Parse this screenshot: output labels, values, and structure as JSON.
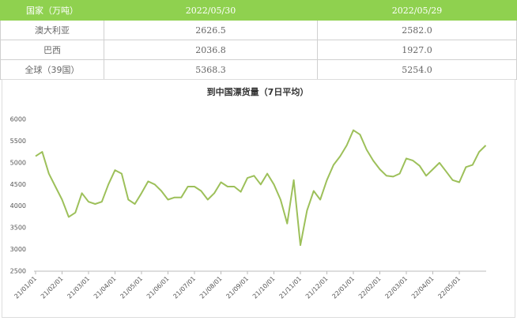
{
  "table": {
    "header": [
      "国家（万吨）",
      "2022/05/30",
      "2022/05/29"
    ],
    "rows": [
      [
        "澳大利亚",
        "2626.5",
        "2582.0"
      ],
      [
        "巴西",
        "2036.8",
        "1927.0"
      ],
      [
        "全球（39国）",
        "5368.3",
        "5254.0"
      ]
    ]
  },
  "chart_data": {
    "type": "line",
    "title": "到中国漂货量（7日平均）",
    "categories": [
      "21/01/01",
      null,
      null,
      null,
      "21/02/01",
      null,
      null,
      null,
      "21/03/01",
      null,
      null,
      null,
      "21/04/01",
      null,
      null,
      null,
      "21/05/01",
      null,
      null,
      null,
      "21/06/01",
      null,
      null,
      null,
      "21/07/01",
      null,
      null,
      null,
      "21/08/01",
      null,
      null,
      null,
      "21/09/01",
      null,
      null,
      null,
      "21/10/01",
      null,
      null,
      null,
      "21/11/01",
      null,
      null,
      null,
      "21/12/01",
      null,
      null,
      null,
      "22/01/01",
      null,
      null,
      null,
      "22/02/01",
      null,
      null,
      null,
      "22/03/01",
      null,
      null,
      null,
      "22/04/01",
      null,
      null,
      null,
      "22/05/01",
      null,
      null,
      null,
      null
    ],
    "values": [
      5150,
      5250,
      4750,
      4450,
      4150,
      3750,
      3850,
      4300,
      4100,
      4050,
      4100,
      4500,
      4830,
      4750,
      4150,
      4050,
      4300,
      4570,
      4500,
      4350,
      4150,
      4200,
      4200,
      4450,
      4450,
      4350,
      4150,
      4300,
      4550,
      4450,
      4450,
      4330,
      4650,
      4700,
      4500,
      4750,
      4500,
      4150,
      3600,
      4600,
      3100,
      3900,
      4350,
      4150,
      4600,
      4950,
      5150,
      5400,
      5750,
      5650,
      5300,
      5050,
      4850,
      4700,
      4680,
      4750,
      5100,
      5050,
      4930,
      4700,
      4850,
      5000,
      4800,
      4600,
      4550,
      4900,
      4950,
      5250,
      5400
    ],
    "color": "#9dc05a",
    "ylim": [
      2500,
      6000
    ],
    "yticks": [
      2500,
      3000,
      3500,
      4000,
      4500,
      5000,
      5500,
      6000
    ],
    "grid": false
  }
}
